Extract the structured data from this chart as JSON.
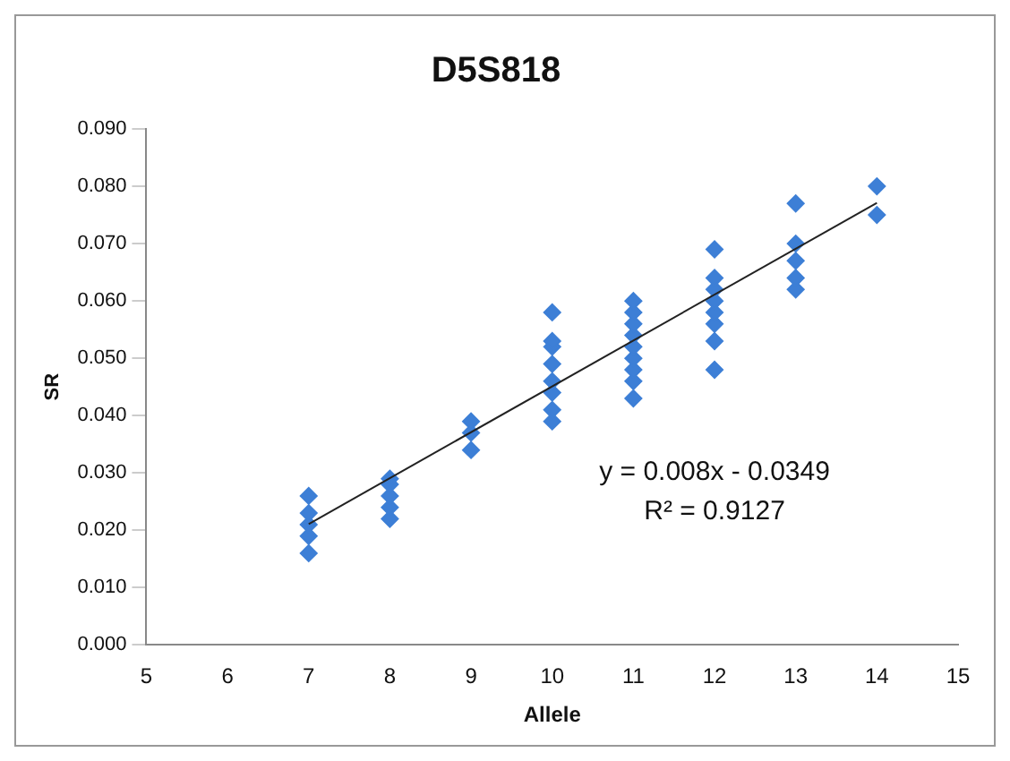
{
  "chart_data": {
    "type": "scatter",
    "title": "D5S818",
    "xlabel": "Allele",
    "ylabel": "SR",
    "xlim": [
      5,
      15
    ],
    "xticks": [
      5,
      6,
      7,
      8,
      9,
      10,
      11,
      12,
      13,
      14,
      15
    ],
    "ylim": [
      0,
      0.09
    ],
    "yticks": [
      {
        "value": 0,
        "label": "0.000"
      },
      {
        "value": 0.01,
        "label": "0.010"
      },
      {
        "value": 0.02,
        "label": "0.020"
      },
      {
        "value": 0.03,
        "label": "0.030"
      },
      {
        "value": 0.04,
        "label": "0.040"
      },
      {
        "value": 0.05,
        "label": "0.050"
      },
      {
        "value": 0.06,
        "label": "0.060"
      },
      {
        "value": 0.07,
        "label": "0.070"
      },
      {
        "value": 0.08,
        "label": "0.080"
      },
      {
        "value": 0.09,
        "label": "0.090"
      }
    ],
    "grid": false,
    "legend": false,
    "marker": "diamond",
    "series": [
      {
        "type": "scatter",
        "color": "#3d7fd6",
        "x": [
          7,
          7,
          7,
          7,
          7,
          8,
          8,
          8,
          8,
          8,
          9,
          9,
          9,
          10,
          10,
          10,
          10,
          10,
          10,
          10,
          10,
          11,
          11,
          11,
          11,
          11,
          11,
          11,
          11,
          11,
          12,
          12,
          12,
          12,
          12,
          12,
          12,
          12,
          13,
          13,
          13,
          13,
          13,
          14,
          14
        ],
        "values": [
          0.016,
          0.019,
          0.021,
          0.023,
          0.026,
          0.022,
          0.024,
          0.026,
          0.028,
          0.029,
          0.034,
          0.037,
          0.039,
          0.039,
          0.041,
          0.044,
          0.046,
          0.049,
          0.052,
          0.053,
          0.058,
          0.043,
          0.046,
          0.048,
          0.05,
          0.052,
          0.054,
          0.056,
          0.058,
          0.06,
          0.048,
          0.053,
          0.056,
          0.058,
          0.06,
          0.062,
          0.064,
          0.069,
          0.062,
          0.064,
          0.067,
          0.07,
          0.077,
          0.075,
          0.08
        ]
      },
      {
        "type": "line",
        "color": "#222222",
        "marker": "none",
        "x": [
          7,
          14
        ],
        "values": [
          0.0211,
          0.0771
        ]
      }
    ],
    "annotations": [
      "y = 0.008x - 0.0349",
      "R² = 0.9127"
    ]
  }
}
